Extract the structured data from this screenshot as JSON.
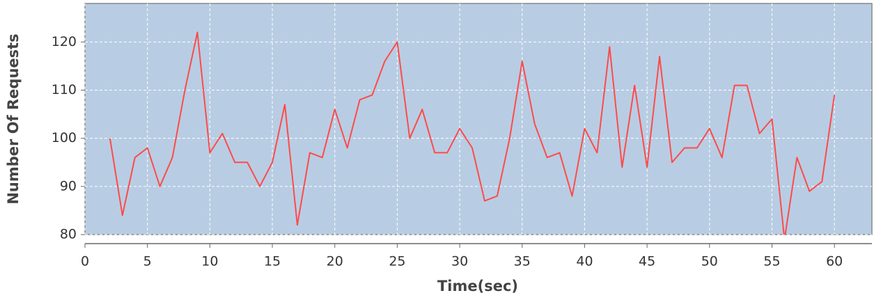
{
  "chart_data": {
    "type": "line",
    "x_label": "Time(sec)",
    "y_label": "Number Of Requests",
    "x": [
      2,
      3,
      4,
      5,
      6,
      7,
      8,
      9,
      10,
      11,
      12,
      13,
      14,
      15,
      16,
      17,
      18,
      19,
      20,
      21,
      22,
      23,
      24,
      25,
      26,
      27,
      28,
      29,
      30,
      31,
      32,
      33,
      34,
      35,
      36,
      37,
      38,
      39,
      40,
      41,
      42,
      43,
      44,
      45,
      46,
      47,
      48,
      49,
      50,
      51,
      52,
      53,
      54,
      55,
      56,
      57,
      58,
      59,
      60
    ],
    "values": [
      100,
      84,
      96,
      98,
      90,
      96,
      110,
      122,
      97,
      101,
      95,
      95,
      90,
      95,
      107,
      82,
      97,
      96,
      106,
      98,
      108,
      109,
      116,
      120,
      100,
      106,
      97,
      97,
      102,
      98,
      87,
      88,
      100,
      116,
      103,
      96,
      97,
      88,
      102,
      97,
      119,
      94,
      111,
      94,
      117,
      95,
      98,
      98,
      102,
      96,
      111,
      111,
      101,
      104,
      79,
      96,
      89,
      91,
      109
    ],
    "color": "#ff4a4a",
    "xlim": [
      0,
      63
    ],
    "ylim": [
      80,
      128
    ],
    "xticks": [
      0,
      5,
      10,
      15,
      20,
      25,
      30,
      35,
      40,
      45,
      50,
      55,
      60
    ],
    "yticks": [
      80,
      90,
      100,
      110,
      120
    ],
    "grid": true,
    "plot_background": "#b8cde3"
  }
}
